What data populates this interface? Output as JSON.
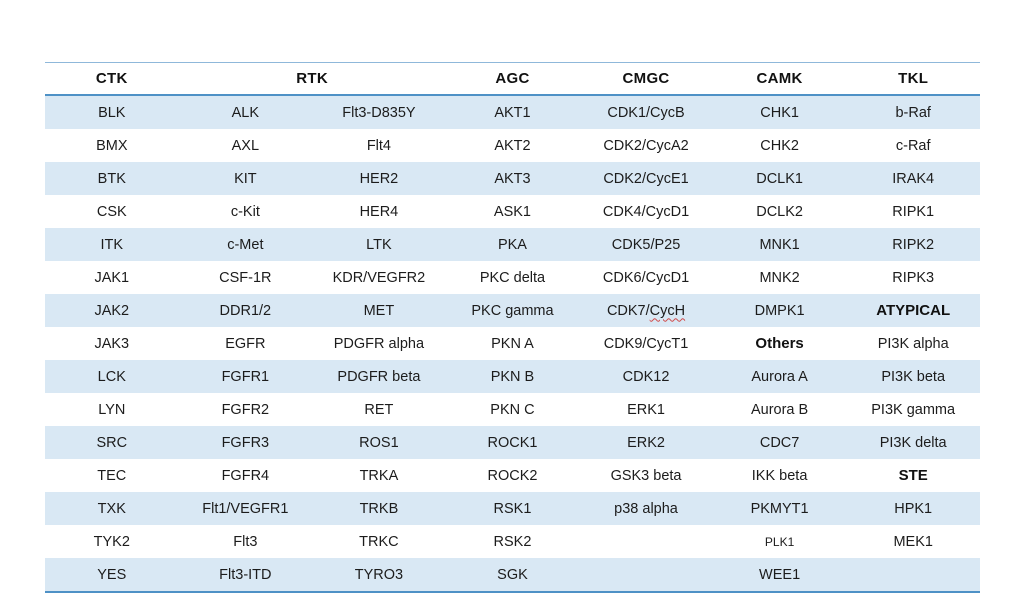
{
  "colors": {
    "band": "#d9e8f4",
    "border": "#4e91c6",
    "border_light": "#8fb8da",
    "squiggle": "#d04a4a",
    "text": "#1c1c1c"
  },
  "table": {
    "headers": [
      {
        "label": "CTK",
        "colspan": 1
      },
      {
        "label": "RTK",
        "colspan": 2
      },
      {
        "label": "AGC",
        "colspan": 1
      },
      {
        "label": "CMGC",
        "colspan": 1
      },
      {
        "label": "CAMK",
        "colspan": 1
      },
      {
        "label": "TKL",
        "colspan": 1
      }
    ],
    "rows": [
      [
        "BLK",
        "ALK",
        "Flt3-D835Y",
        "AKT1",
        "CDK1/CycB",
        "CHK1",
        "b-Raf"
      ],
      [
        "BMX",
        "AXL",
        "Flt4",
        "AKT2",
        "CDK2/CycA2",
        "CHK2",
        "c-Raf"
      ],
      [
        "BTK",
        "KIT",
        "HER2",
        "AKT3",
        "CDK2/CycE1",
        "DCLK1",
        "IRAK4"
      ],
      [
        "CSK",
        "c-Kit",
        "HER4",
        "ASK1",
        "CDK4/CycD1",
        "DCLK2",
        "RIPK1"
      ],
      [
        "ITK",
        "c-Met",
        "LTK",
        "PKA",
        "CDK5/P25",
        "MNK1",
        "RIPK2"
      ],
      [
        "JAK1",
        "CSF-1R",
        "KDR/VEGFR2",
        "PKC delta",
        "CDK6/CycD1",
        "MNK2",
        "RIPK3"
      ],
      [
        "JAK2",
        "DDR1/2",
        "MET",
        "PKC gamma",
        {
          "text": "CDK7/CycH",
          "squiggle": "CycH"
        },
        "DMPK1",
        {
          "text": "ATYPICAL",
          "bold": true
        }
      ],
      [
        "JAK3",
        "EGFR",
        "PDGFR alpha",
        "PKN A",
        "CDK9/CycT1",
        {
          "text": "Others",
          "bold": true
        },
        "PI3K alpha"
      ],
      [
        "LCK",
        "FGFR1",
        "PDGFR beta",
        "PKN B",
        "CDK12",
        "Aurora A",
        "PI3K beta"
      ],
      [
        "LYN",
        "FGFR2",
        "RET",
        "PKN C",
        "ERK1",
        "Aurora B",
        "PI3K gamma"
      ],
      [
        "SRC",
        "FGFR3",
        "ROS1",
        "ROCK1",
        "ERK2",
        "CDC7",
        "PI3K delta"
      ],
      [
        "TEC",
        "FGFR4",
        "TRKA",
        "ROCK2",
        "GSK3 beta",
        "IKK beta",
        {
          "text": "STE",
          "bold": true
        }
      ],
      [
        "TXK",
        "Flt1/VEGFR1",
        "TRKB",
        "RSK1",
        "p38 alpha",
        "PKMYT1",
        "HPK1"
      ],
      [
        "TYK2",
        "Flt3",
        "TRKC",
        "RSK2",
        "",
        {
          "text": "PLK1",
          "small": true
        },
        "MEK1"
      ],
      [
        "YES",
        "Flt3-ITD",
        "TYRO3",
        "SGK",
        "",
        "WEE1",
        ""
      ]
    ]
  }
}
